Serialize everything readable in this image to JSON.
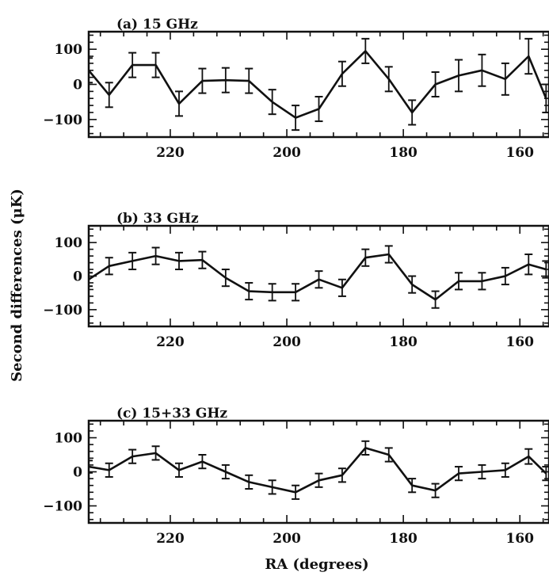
{
  "figure": {
    "ylabel": "Second differences (μK)",
    "xlabel": "RA (degrees)"
  },
  "chart_data": [
    {
      "type": "line",
      "title": "(a) 15 GHz",
      "x": [
        234,
        230.5,
        226.5,
        222.5,
        218.5,
        214.5,
        210.5,
        206.5,
        202.5,
        198.5,
        194.5,
        190.5,
        186.5,
        182.5,
        178.5,
        174.5,
        170.5,
        166.5,
        162.5,
        158.5,
        155.5
      ],
      "y": [
        40,
        -30,
        55,
        55,
        -55,
        10,
        12,
        10,
        -50,
        -95,
        -70,
        30,
        95,
        15,
        -80,
        0,
        25,
        40,
        15,
        80,
        -40
      ],
      "yerr": [
        35,
        35,
        35,
        35,
        35,
        35,
        35,
        35,
        35,
        35,
        35,
        35,
        35,
        35,
        35,
        35,
        45,
        45,
        45,
        50,
        40
      ],
      "xlim": [
        234,
        155
      ],
      "ylim": [
        -150,
        150
      ],
      "xticks": [
        220,
        200,
        180,
        160
      ],
      "yticks": [
        100,
        0,
        -100
      ],
      "grid": false
    },
    {
      "type": "line",
      "title": "(b) 33 GHz",
      "x": [
        234,
        230.5,
        226.5,
        222.5,
        218.5,
        214.5,
        210.5,
        206.5,
        202.5,
        198.5,
        194.5,
        190.5,
        186.5,
        182.5,
        178.5,
        174.5,
        170.5,
        166.5,
        162.5,
        158.5,
        155.5
      ],
      "y": [
        -10,
        30,
        45,
        60,
        45,
        48,
        -5,
        -45,
        -48,
        -48,
        -10,
        -35,
        55,
        65,
        -25,
        -70,
        -15,
        -15,
        0,
        35,
        20
      ],
      "yerr": [
        20,
        25,
        25,
        25,
        25,
        25,
        25,
        25,
        25,
        25,
        25,
        25,
        25,
        25,
        25,
        25,
        25,
        25,
        25,
        30,
        25
      ],
      "xlim": [
        234,
        155
      ],
      "ylim": [
        -150,
        150
      ],
      "xticks": [
        220,
        200,
        180,
        160
      ],
      "yticks": [
        100,
        0,
        -100
      ],
      "grid": false
    },
    {
      "type": "line",
      "title": "(c) 15+33 GHz",
      "x": [
        234,
        230.5,
        226.5,
        222.5,
        218.5,
        214.5,
        210.5,
        206.5,
        202.5,
        198.5,
        194.5,
        190.5,
        186.5,
        182.5,
        178.5,
        174.5,
        170.5,
        166.5,
        162.5,
        158.5,
        155.5
      ],
      "y": [
        15,
        5,
        45,
        55,
        5,
        30,
        0,
        -30,
        -45,
        -60,
        -25,
        -10,
        70,
        50,
        -40,
        -55,
        -5,
        0,
        5,
        45,
        -5
      ],
      "yerr": [
        18,
        20,
        20,
        20,
        20,
        20,
        20,
        20,
        20,
        20,
        20,
        20,
        20,
        20,
        20,
        20,
        20,
        20,
        20,
        22,
        20
      ],
      "xlim": [
        234,
        155
      ],
      "ylim": [
        -150,
        150
      ],
      "xticks": [
        220,
        200,
        180,
        160
      ],
      "yticks": [
        100,
        0,
        -100
      ],
      "grid": false
    }
  ]
}
